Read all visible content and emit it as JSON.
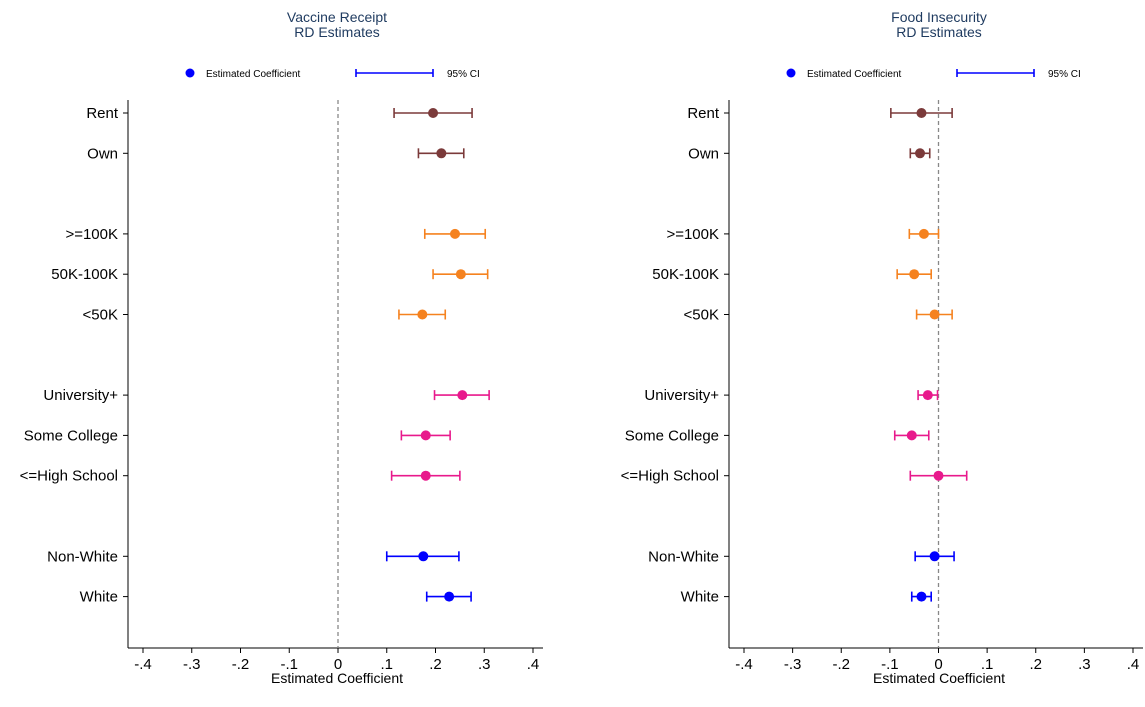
{
  "chart_data": [
    {
      "type": "scatter",
      "title_lines": [
        "Vaccine Receipt",
        "RD Estimates"
      ],
      "xlabel": "Estimated Coefficient",
      "xlim": [
        -0.4,
        0.4
      ],
      "xticks": [
        -0.4,
        -0.3,
        -0.2,
        -0.1,
        0,
        0.1,
        0.2,
        0.3,
        0.4
      ],
      "xtick_labels": [
        "-.4",
        "-.3",
        "-.2",
        "-.1",
        "0",
        ".1",
        ".2",
        ".3",
        ".4"
      ],
      "reference_line": 0,
      "legend": {
        "placement": "top",
        "point_label": "Estimated Coefficient",
        "ci_label": "95% CI",
        "color": "#0000ff"
      },
      "categories": [
        "Rent",
        "Own",
        "",
        ">=100K",
        "50K-100K",
        "<50K",
        "",
        "University+",
        "Some College",
        "<=High School",
        "",
        "Non-White",
        "White"
      ],
      "points": [
        {
          "label": "Rent",
          "row": 0,
          "estimate": 0.195,
          "ci": [
            0.115,
            0.275
          ],
          "color": "#7b3a3a"
        },
        {
          "label": "Own",
          "row": 1,
          "estimate": 0.212,
          "ci": [
            0.165,
            0.258
          ],
          "color": "#7b3a3a"
        },
        {
          "label": ">=100K",
          "row": 3,
          "estimate": 0.24,
          "ci": [
            0.178,
            0.302
          ],
          "color": "#f5821f"
        },
        {
          "label": "50K-100K",
          "row": 4,
          "estimate": 0.252,
          "ci": [
            0.195,
            0.307
          ],
          "color": "#f5821f"
        },
        {
          "label": "<50K",
          "row": 5,
          "estimate": 0.173,
          "ci": [
            0.125,
            0.22
          ],
          "color": "#f5821f"
        },
        {
          "label": "University+",
          "row": 7,
          "estimate": 0.255,
          "ci": [
            0.198,
            0.31
          ],
          "color": "#e8198c"
        },
        {
          "label": "Some College",
          "row": 8,
          "estimate": 0.18,
          "ci": [
            0.13,
            0.23
          ],
          "color": "#e8198c"
        },
        {
          "label": "<=High School",
          "row": 9,
          "estimate": 0.18,
          "ci": [
            0.11,
            0.25
          ],
          "color": "#e8198c"
        },
        {
          "label": "Non-White",
          "row": 11,
          "estimate": 0.175,
          "ci": [
            0.1,
            0.248
          ],
          "color": "#0000ff"
        },
        {
          "label": "White",
          "row": 12,
          "estimate": 0.228,
          "ci": [
            0.182,
            0.273
          ],
          "color": "#0000ff"
        }
      ]
    },
    {
      "type": "scatter",
      "title_lines": [
        "Food Insecurity",
        "RD Estimates"
      ],
      "xlabel": "Estimated Coefficient",
      "xlim": [
        -0.4,
        0.4
      ],
      "xticks": [
        -0.4,
        -0.3,
        -0.2,
        -0.1,
        0,
        0.1,
        0.2,
        0.3,
        0.4
      ],
      "xtick_labels": [
        "-.4",
        "-.3",
        "-.2",
        "-.1",
        "0",
        ".1",
        ".2",
        ".3",
        ".4"
      ],
      "reference_line": 0,
      "legend": {
        "placement": "top",
        "point_label": "Estimated Coefficient",
        "ci_label": "95% CI",
        "color": "#0000ff"
      },
      "categories": [
        "Rent",
        "Own",
        "",
        ">=100K",
        "50K-100K",
        "<50K",
        "",
        "University+",
        "Some College",
        "<=High School",
        "",
        "Non-White",
        "White"
      ],
      "points": [
        {
          "label": "Rent",
          "row": 0,
          "estimate": -0.035,
          "ci": [
            -0.098,
            0.028
          ],
          "color": "#7b3a3a"
        },
        {
          "label": "Own",
          "row": 1,
          "estimate": -0.038,
          "ci": [
            -0.058,
            -0.018
          ],
          "color": "#7b3a3a"
        },
        {
          "label": ">=100K",
          "row": 3,
          "estimate": -0.03,
          "ci": [
            -0.06,
            0.0
          ],
          "color": "#f5821f"
        },
        {
          "label": "50K-100K",
          "row": 4,
          "estimate": -0.05,
          "ci": [
            -0.085,
            -0.015
          ],
          "color": "#f5821f"
        },
        {
          "label": "<50K",
          "row": 5,
          "estimate": -0.008,
          "ci": [
            -0.045,
            0.028
          ],
          "color": "#f5821f"
        },
        {
          "label": "University+",
          "row": 7,
          "estimate": -0.022,
          "ci": [
            -0.042,
            -0.002
          ],
          "color": "#e8198c"
        },
        {
          "label": "Some College",
          "row": 8,
          "estimate": -0.055,
          "ci": [
            -0.09,
            -0.02
          ],
          "color": "#e8198c"
        },
        {
          "label": "<=High School",
          "row": 9,
          "estimate": 0.0,
          "ci": [
            -0.058,
            0.058
          ],
          "color": "#e8198c"
        },
        {
          "label": "Non-White",
          "row": 11,
          "estimate": -0.008,
          "ci": [
            -0.048,
            0.032
          ],
          "color": "#0000ff"
        },
        {
          "label": "White",
          "row": 12,
          "estimate": -0.035,
          "ci": [
            -0.055,
            -0.015
          ],
          "color": "#0000ff"
        }
      ]
    }
  ]
}
